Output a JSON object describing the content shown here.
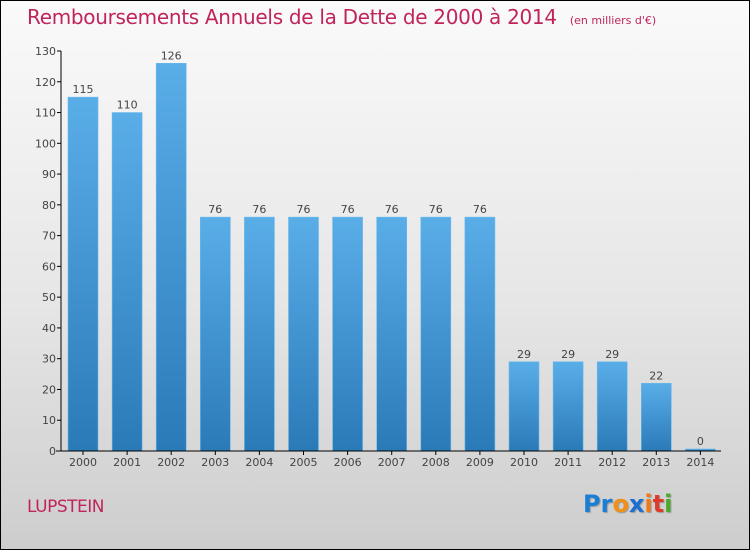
{
  "title": "Remboursements Annuels de la Dette de 2000 à 2014",
  "unit_note": "(en milliers d'€)",
  "commune": "LUPSTEIN",
  "logo": {
    "letters": [
      {
        "char": "P",
        "color": "#1a7fd4"
      },
      {
        "char": "r",
        "color": "#1a7fd4"
      },
      {
        "char": "o",
        "color": "#f0901a"
      },
      {
        "char": "x",
        "color": "#1a6fd0"
      },
      {
        "char": "i",
        "color": "#f07a1a"
      },
      {
        "char": "t",
        "color": "#e03a2a"
      },
      {
        "char": "i",
        "color": "#4caa2a"
      }
    ]
  },
  "colors": {
    "bar_top": "#5aaee8",
    "bar_bottom": "#2a7ab8",
    "title": "#c0245c"
  },
  "chart_data": {
    "type": "bar",
    "title": "Remboursements Annuels de la Dette de 2000 à 2014",
    "subtitle": "(en milliers d'€)",
    "xlabel": "",
    "ylabel": "",
    "categories": [
      "2000",
      "2001",
      "2002",
      "2003",
      "2004",
      "2005",
      "2006",
      "2007",
      "2008",
      "2009",
      "2010",
      "2011",
      "2012",
      "2013",
      "2014"
    ],
    "values": [
      115,
      110,
      126,
      76,
      76,
      76,
      76,
      76,
      76,
      76,
      29,
      29,
      29,
      22,
      0
    ],
    "ylim": [
      0,
      130
    ],
    "yticks": [
      0,
      10,
      20,
      30,
      40,
      50,
      60,
      70,
      80,
      90,
      100,
      110,
      120,
      130
    ],
    "grid": false,
    "legend": "none"
  }
}
